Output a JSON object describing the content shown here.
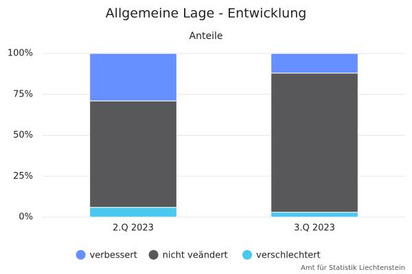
{
  "chart_data": {
    "type": "stacked_bar",
    "title": "Allgemeine Lage - Entwicklung",
    "subtitle": "Anteile",
    "categories": [
      "2.Q 2023",
      "3.Q 2023"
    ],
    "series": [
      {
        "name": "verschlechtert",
        "color": "#4bc8f0",
        "values": [
          6,
          3
        ]
      },
      {
        "name": "nicht veändert",
        "color": "#58585a",
        "values": [
          65,
          85
        ]
      },
      {
        "name": "verbessert",
        "color": "#6690ff",
        "values": [
          29,
          12
        ]
      }
    ],
    "legend_order": [
      2,
      1,
      0
    ],
    "ylim": [
      0,
      100
    ],
    "yticks": [
      {
        "value": 0,
        "label": "0%"
      },
      {
        "value": 25,
        "label": "25%"
      },
      {
        "value": 50,
        "label": "50%"
      },
      {
        "value": 75,
        "label": "75%"
      },
      {
        "value": 100,
        "label": "100%"
      }
    ],
    "grid": true,
    "credit": "Amt für Statistik Liechtenstein"
  }
}
